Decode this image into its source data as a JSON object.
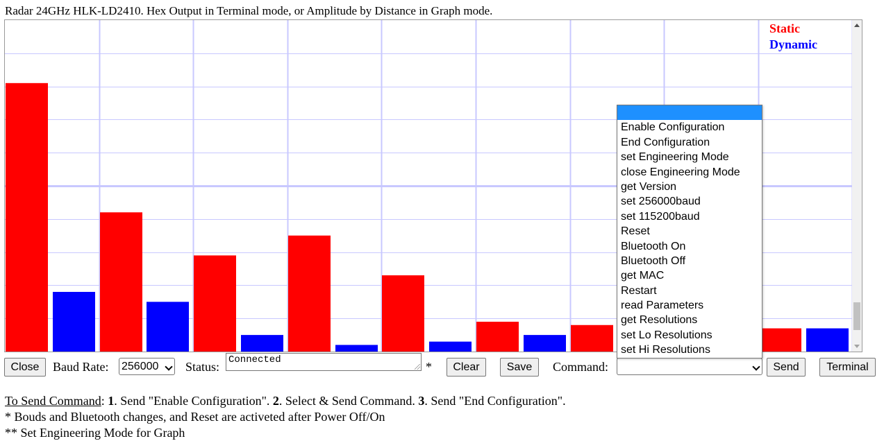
{
  "page": {
    "title": "Radar 24GHz HLK-LD2410. Hex Output in Terminal mode, or Amplitude by Distance in Graph mode."
  },
  "legend": {
    "static": "Static",
    "dynamic": "Dynamic"
  },
  "colors": {
    "static": "#ff0000",
    "dynamic": "#0000ff",
    "grid": "#c8c8ff",
    "highlight": "#1e90ff"
  },
  "chart_data": {
    "type": "bar",
    "title": "",
    "xlabel": "",
    "ylabel": "",
    "ylim": [
      0,
      100
    ],
    "grid": true,
    "series": [
      {
        "name": "Static",
        "values": [
          81,
          42,
          29,
          35,
          23,
          9,
          8,
          0,
          7
        ]
      },
      {
        "name": "Dynamic",
        "values": [
          18,
          15,
          5,
          2,
          3,
          5,
          0,
          0,
          7
        ]
      }
    ]
  },
  "controls": {
    "close": "Close",
    "baud_label": "Baud Rate:",
    "baud_value": "256000",
    "status_label": "Status:",
    "status_value": "Connected",
    "asterisk": "*",
    "clear": "Clear",
    "save": "Save",
    "command_label": "Command:",
    "send": "Send",
    "terminal": "Terminal"
  },
  "command_options": [
    "",
    "Enable Configuration",
    "End Configuration",
    "set Engineering Mode",
    "close Engineering Mode",
    "get Version",
    "set 256000baud",
    "set 115200baud",
    "Reset",
    "Bluetooth On",
    "Bluetooth Off",
    "get MAC",
    "Restart",
    "read Parameters",
    "get Resolutions",
    "set Lo Resolutions",
    "set Hi Resolutions"
  ],
  "instructions": {
    "heading": "To Send Command",
    "colon": ": ",
    "step1_num": "1",
    "step1_text": ". Send \"Enable Configuration\". ",
    "step2_num": "2",
    "step2_text": ". Select & Send Command. ",
    "step3_num": "3",
    "step3_text": ". Send \"End Configuration\".",
    "note1": "* Bouds and Bluetooth changes, and Reset are activeted after Power Off/On",
    "note2": "** Set Engineering Mode for Graph"
  }
}
